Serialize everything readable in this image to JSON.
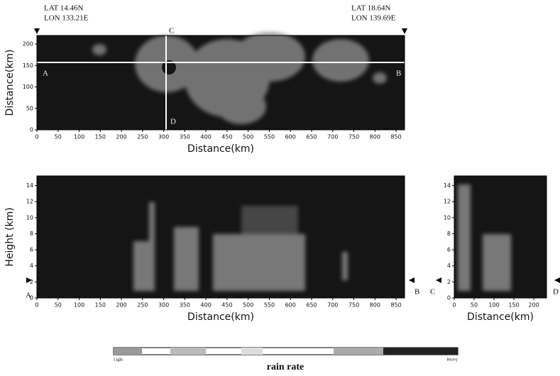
{
  "header": {
    "left_lat": "LAT 14.46N",
    "left_lon": "LON 133.21E",
    "right_lat": "LAT 18.64N",
    "right_lon": "LON 139.69E"
  },
  "points": {
    "a": "A",
    "b": "B",
    "c": "C",
    "d": "D"
  },
  "panels": {
    "plan_view": {
      "xlabel": "Distance(km)",
      "ylabel": "Distance(km)",
      "xlim": [
        0,
        870
      ],
      "ylim": [
        0,
        220
      ],
      "xticks": [
        0,
        50,
        100,
        150,
        200,
        250,
        300,
        350,
        400,
        450,
        500,
        550,
        600,
        650,
        700,
        750,
        800,
        850
      ],
      "yticks": [
        0,
        50,
        100,
        150,
        200
      ]
    },
    "section_ab": {
      "xlabel": "Distance(km)",
      "ylabel": "Height (km)",
      "xlim": [
        0,
        870
      ],
      "ylim": [
        0,
        15.2
      ],
      "xticks": [
        0,
        50,
        100,
        150,
        200,
        250,
        300,
        350,
        400,
        450,
        500,
        550,
        600,
        650,
        700,
        750,
        800,
        850
      ],
      "yticks": [
        0,
        2,
        4,
        6,
        8,
        10,
        12,
        14
      ]
    },
    "section_cd": {
      "xlabel": "Distance(km)",
      "xlim": [
        0,
        232
      ],
      "ylim": [
        0,
        15.2
      ],
      "xticks": [
        0,
        50,
        100,
        150,
        200
      ],
      "yticks": [
        0,
        2,
        4,
        6,
        8,
        10,
        12,
        14
      ]
    }
  },
  "colorbar": {
    "title": "rain rate",
    "low": "Light",
    "high": "Heavy"
  }
}
